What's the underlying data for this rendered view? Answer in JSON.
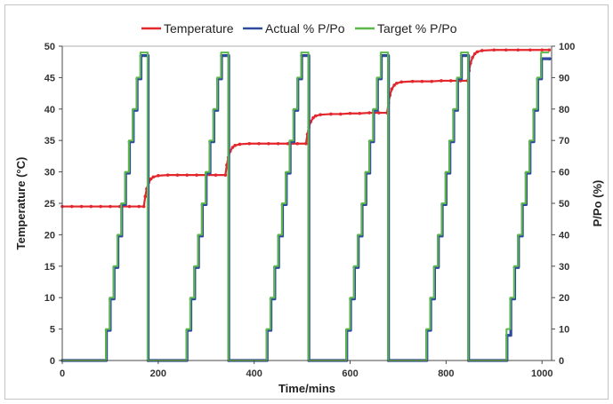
{
  "chart_data": {
    "type": "line",
    "legend": "top-center",
    "grid": false,
    "x_axis": {
      "label": "Time/mins",
      "range": [
        0,
        1020
      ],
      "ticks": [
        0,
        200,
        400,
        600,
        800,
        1000
      ]
    },
    "y_axis_left": {
      "label": "Temperature (°C)",
      "range": [
        0,
        50
      ],
      "ticks": [
        0,
        5,
        10,
        15,
        20,
        25,
        30,
        35,
        40,
        45,
        50
      ]
    },
    "y_axis_right": {
      "label": "P/Po (%)",
      "range": [
        0,
        100
      ],
      "ticks": [
        0,
        10,
        20,
        30,
        40,
        50,
        60,
        70,
        80,
        90,
        100
      ]
    },
    "series": [
      {
        "name": "Temperature",
        "axis": "left",
        "color": "#e3272c",
        "marker": "circle",
        "x": [
          0,
          20,
          40,
          60,
          80,
          100,
          120,
          140,
          160,
          170,
          173,
          176,
          180,
          185,
          190,
          200,
          220,
          240,
          260,
          280,
          300,
          320,
          340,
          343,
          346,
          350,
          355,
          360,
          370,
          390,
          410,
          430,
          450,
          470,
          490,
          508,
          511,
          514,
          518,
          523,
          528,
          538,
          560,
          580,
          600,
          620,
          640,
          660,
          677,
          680,
          683,
          687,
          692,
          697,
          707,
          730,
          750,
          770,
          790,
          810,
          830,
          845,
          848,
          851,
          855,
          860,
          865,
          875,
          900,
          925,
          950,
          975,
          1000,
          1015
        ],
        "y": [
          24.5,
          24.5,
          24.5,
          24.5,
          24.5,
          24.5,
          24.5,
          24.5,
          24.5,
          24.5,
          26.1,
          27.3,
          28.3,
          28.9,
          29.2,
          29.4,
          29.5,
          29.5,
          29.5,
          29.5,
          29.5,
          29.5,
          29.5,
          31.1,
          32.3,
          33.3,
          33.9,
          34.2,
          34.4,
          34.5,
          34.5,
          34.5,
          34.5,
          34.5,
          34.5,
          34.5,
          36.0,
          37.1,
          38.0,
          38.6,
          38.9,
          39.1,
          39.2,
          39.2,
          39.3,
          39.3,
          39.4,
          39.4,
          39.4,
          41.0,
          42.2,
          43.2,
          43.8,
          44.1,
          44.3,
          44.4,
          44.4,
          44.4,
          44.5,
          44.5,
          44.5,
          44.5,
          46.1,
          47.3,
          48.2,
          48.8,
          49.1,
          49.3,
          49.4,
          49.4,
          49.4,
          49.4,
          49.4,
          49.4
        ]
      },
      {
        "name": "Actual % P/Po",
        "axis": "right",
        "color": "#2e4b9f",
        "marker": "circle",
        "drawstyle": "steps-post",
        "x": [
          0,
          92,
          100,
          108,
          116,
          124,
          132,
          140,
          148,
          156,
          164,
          179,
          260,
          268,
          276,
          284,
          292,
          300,
          308,
          316,
          324,
          332,
          347,
          427,
          435,
          443,
          451,
          459,
          467,
          475,
          483,
          491,
          499,
          514,
          593,
          601,
          609,
          617,
          625,
          633,
          641,
          649,
          657,
          665,
          680,
          760,
          768,
          776,
          784,
          792,
          800,
          808,
          816,
          824,
          832,
          847,
          927,
          935,
          943,
          951,
          959,
          967,
          975,
          983,
          991,
          999,
          1016
        ],
        "y": [
          0,
          9.6,
          19.6,
          29.6,
          39.6,
          49.6,
          59.6,
          69.6,
          79.6,
          89.6,
          97,
          0,
          9.6,
          19.6,
          29.6,
          39.6,
          49.6,
          59.6,
          69.6,
          79.6,
          89.6,
          97,
          0,
          9.6,
          19.6,
          29.6,
          39.6,
          49.6,
          59.6,
          69.6,
          79.6,
          89.6,
          97,
          0,
          9.6,
          19.6,
          29.6,
          39.6,
          49.6,
          59.6,
          69.6,
          79.6,
          89.6,
          97,
          0,
          9.6,
          19.6,
          29.6,
          39.6,
          49.6,
          59.6,
          69.6,
          79.6,
          89.6,
          97,
          0,
          8,
          19.6,
          29.6,
          39.6,
          49.6,
          59.6,
          69.6,
          79.6,
          89.6,
          96,
          96
        ]
      },
      {
        "name": "Target % P/Po",
        "axis": "right",
        "color": "#5db84b",
        "drawstyle": "steps-post",
        "x": [
          0,
          91,
          99,
          107,
          115,
          123,
          131,
          139,
          147,
          155,
          163,
          178,
          259,
          267,
          275,
          283,
          291,
          299,
          307,
          315,
          323,
          331,
          346,
          426,
          434,
          442,
          450,
          458,
          466,
          474,
          482,
          490,
          498,
          513,
          592,
          600,
          608,
          616,
          624,
          632,
          640,
          648,
          656,
          664,
          679,
          759,
          767,
          775,
          783,
          791,
          799,
          807,
          815,
          823,
          831,
          846,
          926,
          934,
          942,
          950,
          958,
          966,
          974,
          982,
          990,
          998,
          1015
        ],
        "y": [
          0,
          10,
          20,
          30,
          40,
          50,
          60,
          70,
          80,
          90,
          98,
          0,
          10,
          20,
          30,
          40,
          50,
          60,
          70,
          80,
          90,
          98,
          0,
          10,
          20,
          30,
          40,
          50,
          60,
          70,
          80,
          90,
          98,
          0,
          10,
          20,
          30,
          40,
          50,
          60,
          70,
          80,
          90,
          98,
          0,
          10,
          20,
          30,
          40,
          50,
          60,
          70,
          80,
          90,
          98,
          0,
          10,
          20,
          30,
          40,
          50,
          60,
          70,
          80,
          90,
          98,
          98
        ]
      }
    ]
  }
}
